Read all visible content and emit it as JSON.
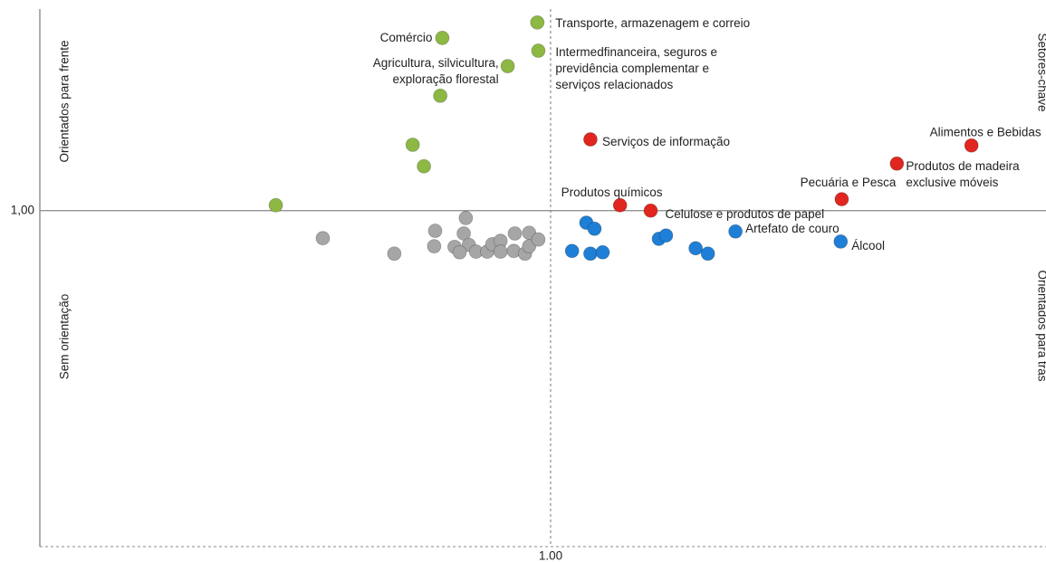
{
  "chart_data": {
    "type": "scatter",
    "xlim": [
      0.5,
      1.485
    ],
    "ylim": [
      0.5,
      1.3
    ],
    "xticks": [
      {
        "value": 1,
        "label": "1.00"
      }
    ],
    "yticks": [
      {
        "value": 1,
        "label": "1,00"
      }
    ],
    "annotations": [
      "Orientados para frente",
      "Sem orientação",
      "Setores-chave",
      "Orientados para trás"
    ],
    "series": [
      {
        "color": "#8db843",
        "x": [
          0.987,
          0.894,
          0.988,
          0.958,
          0.892,
          0.865,
          0.876,
          0.731
        ],
        "y": [
          1.28,
          1.257,
          1.238,
          1.215,
          1.171,
          1.098,
          1.066,
          1.008
        ],
        "labels": [
          [
            "Transporte, armazenagem e correio"
          ],
          [
            "Comércio"
          ],
          [
            "Intermedfinanceira, seguros e",
            "previdência complementar e",
            "serviços relacionados"
          ],
          [
            "Agricultura, silvicultura,",
            "exploração florestal"
          ],
          null,
          null,
          null,
          null
        ]
      },
      {
        "color": "#e0261f",
        "x": [
          1.039,
          1.412,
          1.339,
          1.285,
          1.068,
          1.098
        ],
        "y": [
          1.106,
          1.097,
          1.07,
          1.017,
          1.008,
          1.0
        ],
        "labels": [
          [
            "Serviços de informação"
          ],
          [
            "Alimentos e Bebidas"
          ],
          [
            "Produtos de madeira",
            "exclusive  móveis"
          ],
          [
            "Pecuária e Pesca"
          ],
          [
            "Produtos químicos"
          ],
          [
            "Celulose e produtos de papel"
          ]
        ]
      },
      {
        "color": "#1f7fd6",
        "x": [
          1.035,
          1.043,
          1.021,
          1.039,
          1.051,
          1.106,
          1.113,
          1.142,
          1.154,
          1.181,
          1.284
        ],
        "y": [
          0.982,
          0.973,
          0.94,
          0.936,
          0.938,
          0.958,
          0.963,
          0.944,
          0.936,
          0.969,
          0.954
        ],
        "labels": [
          null,
          null,
          null,
          null,
          null,
          null,
          null,
          null,
          null,
          [
            "Artefato de couro"
          ],
          [
            "Álcool"
          ]
        ]
      },
      {
        "color": "#a6a6a6",
        "x": [
          0.777,
          0.847,
          0.887,
          0.886,
          0.917,
          0.915,
          0.906,
          0.92,
          0.911,
          0.927,
          0.938,
          0.943,
          0.951,
          0.951,
          0.965,
          0.964,
          0.975,
          0.979,
          0.979,
          0.988
        ],
        "y": [
          0.959,
          0.936,
          0.97,
          0.947,
          0.989,
          0.966,
          0.946,
          0.949,
          0.938,
          0.939,
          0.939,
          0.95,
          0.955,
          0.939,
          0.966,
          0.94,
          0.936,
          0.967,
          0.947,
          0.957
        ],
        "labels": [
          null,
          null,
          null,
          null,
          null,
          null,
          null,
          null,
          null,
          null,
          null,
          null,
          null,
          null,
          null,
          null,
          null,
          null,
          null,
          null
        ]
      }
    ]
  }
}
